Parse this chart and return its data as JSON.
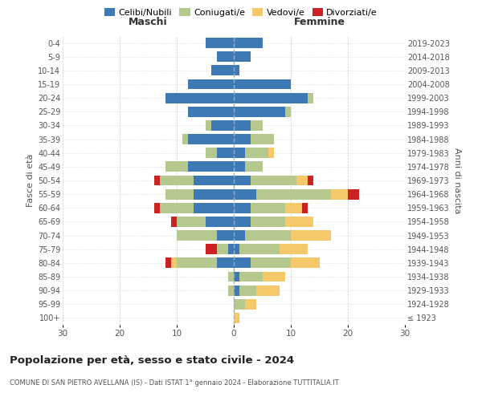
{
  "age_groups": [
    "100+",
    "95-99",
    "90-94",
    "85-89",
    "80-84",
    "75-79",
    "70-74",
    "65-69",
    "60-64",
    "55-59",
    "50-54",
    "45-49",
    "40-44",
    "35-39",
    "30-34",
    "25-29",
    "20-24",
    "15-19",
    "10-14",
    "5-9",
    "0-4"
  ],
  "birth_years": [
    "≤ 1923",
    "1924-1928",
    "1929-1933",
    "1934-1938",
    "1939-1943",
    "1944-1948",
    "1949-1953",
    "1954-1958",
    "1959-1963",
    "1964-1968",
    "1969-1973",
    "1974-1978",
    "1979-1983",
    "1984-1988",
    "1989-1993",
    "1994-1998",
    "1999-2003",
    "2004-2008",
    "2009-2013",
    "2014-2018",
    "2019-2023"
  ],
  "colors": {
    "celibe": "#3d7ab5",
    "coniugato": "#b5c98e",
    "vedovo": "#f5c96a",
    "divorziato": "#cc2222"
  },
  "males": {
    "celibe": [
      0,
      0,
      0,
      0,
      3,
      1,
      3,
      5,
      7,
      7,
      7,
      8,
      3,
      8,
      4,
      8,
      12,
      8,
      4,
      3,
      5
    ],
    "coniugato": [
      0,
      0,
      1,
      1,
      7,
      2,
      7,
      5,
      6,
      5,
      6,
      4,
      2,
      1,
      1,
      0,
      0,
      0,
      0,
      0,
      0
    ],
    "vedovo": [
      0,
      0,
      0,
      0,
      1,
      0,
      0,
      0,
      0,
      0,
      0,
      0,
      0,
      0,
      0,
      0,
      0,
      0,
      0,
      0,
      0
    ],
    "divorziato": [
      0,
      0,
      0,
      0,
      1,
      2,
      0,
      1,
      1,
      0,
      1,
      0,
      0,
      0,
      0,
      0,
      0,
      0,
      0,
      0,
      0
    ]
  },
  "females": {
    "celibe": [
      0,
      0,
      1,
      1,
      3,
      1,
      2,
      3,
      3,
      4,
      3,
      2,
      2,
      3,
      3,
      9,
      13,
      10,
      1,
      3,
      5
    ],
    "coniugato": [
      0,
      2,
      3,
      4,
      7,
      7,
      8,
      6,
      6,
      13,
      8,
      3,
      4,
      4,
      2,
      1,
      1,
      0,
      0,
      0,
      0
    ],
    "vedovo": [
      1,
      2,
      4,
      4,
      5,
      5,
      7,
      5,
      3,
      3,
      2,
      0,
      1,
      0,
      0,
      0,
      0,
      0,
      0,
      0,
      0
    ],
    "divorziato": [
      0,
      0,
      0,
      0,
      0,
      0,
      0,
      0,
      1,
      2,
      1,
      0,
      0,
      0,
      0,
      0,
      0,
      0,
      0,
      0,
      0
    ]
  },
  "title": "Popolazione per età, sesso e stato civile - 2024",
  "subtitle": "COMUNE DI SAN PIETRO AVELLANA (IS) - Dati ISTAT 1° gennaio 2024 - Elaborazione TUTTITALIA.IT",
  "xlabel_left": "Maschi",
  "xlabel_right": "Femmine",
  "ylabel_left": "Fasce di età",
  "ylabel_right": "Anni di nascita",
  "xlim": 30,
  "background_color": "#ffffff",
  "grid_color": "#cccccc"
}
